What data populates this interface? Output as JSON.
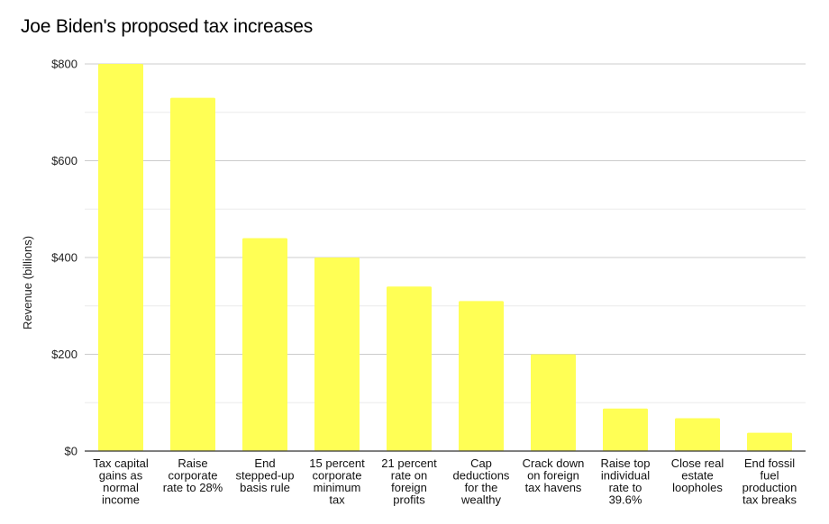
{
  "chart_data": {
    "type": "bar",
    "title": "Joe Biden's proposed tax increases",
    "xlabel": "",
    "ylabel": "Revenue (billions)",
    "ylim": [
      0,
      800
    ],
    "yticks": [
      0,
      200,
      400,
      600,
      800
    ],
    "ytick_labels": [
      "$0",
      "$200",
      "$400",
      "$600",
      "$800"
    ],
    "minor_gridlines": [
      100,
      300,
      500,
      700
    ],
    "grid": true,
    "legend": "none",
    "bar_color": "#ffff55",
    "categories": [
      [
        "Tax capital",
        "gains as",
        "normal",
        "income"
      ],
      [
        "Raise",
        "corporate",
        "rate to 28%"
      ],
      [
        "End",
        "stepped-up",
        "basis rule"
      ],
      [
        "15 percent",
        "corporate",
        "minimum",
        "tax"
      ],
      [
        "21 percent",
        "rate on",
        "foreign",
        "profits"
      ],
      [
        "Cap",
        "deductions",
        "for the",
        "wealthy"
      ],
      [
        "Crack down",
        "on foreign",
        "tax havens"
      ],
      [
        "Raise top",
        "individual",
        "rate to",
        "39.6%"
      ],
      [
        "Close real",
        "estate",
        "loopholes"
      ],
      [
        "End fossil",
        "fuel",
        "production",
        "tax breaks"
      ]
    ],
    "values": [
      800,
      730,
      440,
      400,
      340,
      310,
      200,
      88,
      68,
      38
    ]
  }
}
